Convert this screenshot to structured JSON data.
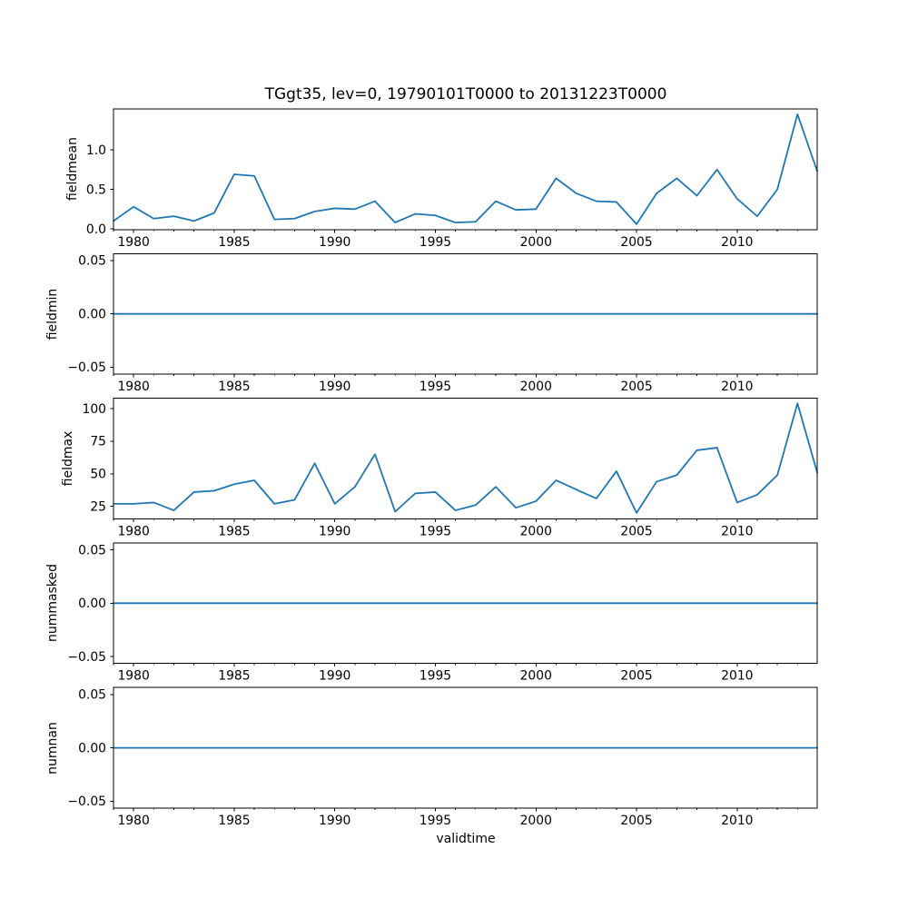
{
  "chart_data": {
    "type": "line",
    "title": "TGgt35, lev=0, 19790101T0000 to 20131223T0000",
    "xlabel": "validtime",
    "line_color": "#1f77b4",
    "axis_color": "#000000",
    "background_color": "#ffffff",
    "xlim": [
      1979.0,
      2013.98
    ],
    "x_major_ticks": [
      1980,
      1985,
      1990,
      1995,
      2000,
      2005,
      2010
    ],
    "x_major_tick_labels": [
      "1980",
      "1985",
      "1990",
      "1995",
      "2000",
      "2005",
      "2010"
    ],
    "x_minor_ticks": [
      1979,
      1981,
      1982,
      1983,
      1984,
      1986,
      1987,
      1988,
      1989,
      1991,
      1992,
      1993,
      1994,
      1996,
      1997,
      1998,
      1999,
      2001,
      2002,
      2003,
      2004,
      2006,
      2007,
      2008,
      2009,
      2011,
      2012,
      2013
    ],
    "x": [
      1979,
      1980,
      1981,
      1982,
      1983,
      1984,
      1985,
      1986,
      1987,
      1988,
      1989,
      1990,
      1991,
      1992,
      1993,
      1994,
      1995,
      1996,
      1997,
      1998,
      1999,
      2000,
      2001,
      2002,
      2003,
      2004,
      2005,
      2006,
      2007,
      2008,
      2009,
      2010,
      2011,
      2012,
      2013,
      2013.98
    ],
    "panels": [
      {
        "ylabel": "fieldmean",
        "ylim": [
          -0.008,
          1.517
        ],
        "yticks": [
          0.0,
          0.5,
          1.0
        ],
        "ytick_labels": [
          "0.0",
          "0.5",
          "1.0"
        ],
        "values": [
          0.1,
          0.28,
          0.13,
          0.16,
          0.1,
          0.2,
          0.69,
          0.67,
          0.12,
          0.13,
          0.22,
          0.26,
          0.25,
          0.35,
          0.08,
          0.19,
          0.17,
          0.08,
          0.09,
          0.35,
          0.24,
          0.25,
          0.64,
          0.45,
          0.35,
          0.34,
          0.06,
          0.45,
          0.64,
          0.42,
          0.75,
          0.38,
          0.16,
          0.5,
          1.45,
          0.73
        ]
      },
      {
        "ylabel": "fieldmin",
        "ylim": [
          -0.0565,
          0.0565
        ],
        "yticks": [
          -0.05,
          0.0,
          0.05
        ],
        "ytick_labels": [
          "−0.05",
          "0.00",
          "0.05"
        ],
        "values": [
          0,
          0,
          0,
          0,
          0,
          0,
          0,
          0,
          0,
          0,
          0,
          0,
          0,
          0,
          0,
          0,
          0,
          0,
          0,
          0,
          0,
          0,
          0,
          0,
          0,
          0,
          0,
          0,
          0,
          0,
          0,
          0,
          0,
          0,
          0,
          0
        ]
      },
      {
        "ylabel": "fieldmax",
        "ylim": [
          15.5,
          107.9
        ],
        "yticks": [
          25,
          50,
          75,
          100
        ],
        "ytick_labels": [
          "25",
          "50",
          "75",
          "100"
        ],
        "values": [
          27,
          27,
          28,
          22,
          36,
          37,
          42,
          45,
          27,
          30,
          58,
          27,
          40,
          65,
          21,
          35,
          36,
          22,
          26,
          40,
          24,
          29,
          45,
          38,
          31,
          52,
          20,
          44,
          49,
          68,
          70,
          28,
          34,
          49,
          104,
          51
        ]
      },
      {
        "ylabel": "nummasked",
        "ylim": [
          -0.0565,
          0.0565
        ],
        "yticks": [
          -0.05,
          0.0,
          0.05
        ],
        "ytick_labels": [
          "−0.05",
          "0.00",
          "0.05"
        ],
        "values": [
          0,
          0,
          0,
          0,
          0,
          0,
          0,
          0,
          0,
          0,
          0,
          0,
          0,
          0,
          0,
          0,
          0,
          0,
          0,
          0,
          0,
          0,
          0,
          0,
          0,
          0,
          0,
          0,
          0,
          0,
          0,
          0,
          0,
          0,
          0,
          0
        ]
      },
      {
        "ylabel": "numnan",
        "ylim": [
          -0.0565,
          0.0565
        ],
        "yticks": [
          -0.05,
          0.0,
          0.05
        ],
        "ytick_labels": [
          "−0.05",
          "0.00",
          "0.05"
        ],
        "values": [
          0,
          0,
          0,
          0,
          0,
          0,
          0,
          0,
          0,
          0,
          0,
          0,
          0,
          0,
          0,
          0,
          0,
          0,
          0,
          0,
          0,
          0,
          0,
          0,
          0,
          0,
          0,
          0,
          0,
          0,
          0,
          0,
          0,
          0,
          0,
          0
        ]
      }
    ]
  }
}
